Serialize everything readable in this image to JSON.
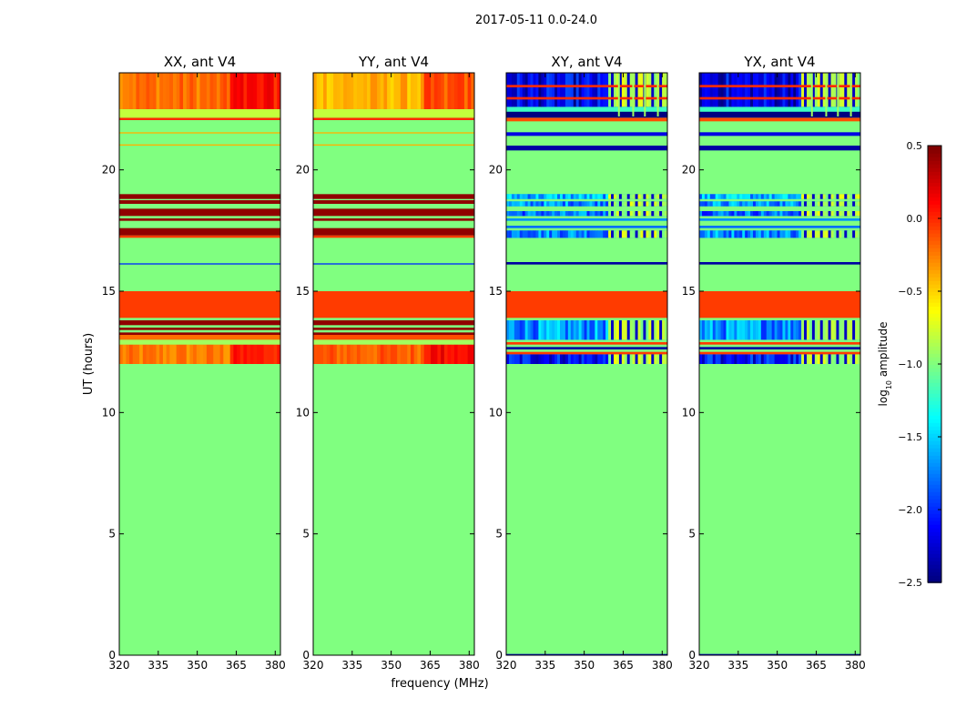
{
  "suptitle": "2017-05-11 0.0-24.0",
  "chart_data": {
    "type": "heatmap",
    "xlabel": "frequency (MHz)",
    "ylabel": "UT (hours)",
    "xlim": [
      320,
      382
    ],
    "ylim": [
      0,
      24
    ],
    "xticks": [
      320,
      335,
      350,
      365,
      380
    ],
    "yticks": [
      0,
      5,
      10,
      15,
      20
    ],
    "panels": [
      {
        "title": "XX, ant V4",
        "kind": "parallel",
        "base": -1.0,
        "bands": [
          {
            "y0": 12.0,
            "y1": 12.8,
            "value": -0.25,
            "texture": "xx"
          },
          {
            "y0": 12.8,
            "y1": 13.0,
            "value": -0.9
          },
          {
            "y0": 13.0,
            "y1": 13.2,
            "value": -0.2
          },
          {
            "y0": 13.2,
            "y1": 13.3,
            "value": 0.45
          },
          {
            "y0": 13.4,
            "y1": 13.5,
            "value": 0.45
          },
          {
            "y0": 13.6,
            "y1": 13.8,
            "value": 0.45
          },
          {
            "y0": 13.9,
            "y1": 15.0,
            "value": -0.05
          },
          {
            "y0": 16.1,
            "y1": 16.15,
            "value": -2.0
          },
          {
            "y0": 17.2,
            "y1": 17.3,
            "value": -0.05
          },
          {
            "y0": 17.3,
            "y1": 17.6,
            "value": 0.45
          },
          {
            "y0": 17.9,
            "y1": 18.0,
            "value": 0.45
          },
          {
            "y0": 18.1,
            "y1": 18.4,
            "value": 0.45
          },
          {
            "y0": 18.6,
            "y1": 18.75,
            "value": 0.45
          },
          {
            "y0": 18.8,
            "y1": 19.0,
            "value": 0.45
          },
          {
            "y0": 21.0,
            "y1": 21.05,
            "value": -0.4
          },
          {
            "y0": 21.5,
            "y1": 21.55,
            "value": -0.4
          },
          {
            "y0": 22.05,
            "y1": 22.15,
            "value": 0.0
          },
          {
            "y0": 22.15,
            "y1": 22.5,
            "value": -0.8
          },
          {
            "y0": 22.5,
            "y1": 24.0,
            "value": -0.2,
            "texture": "xx"
          }
        ]
      },
      {
        "title": "YY, ant V4",
        "kind": "parallel",
        "base": -1.0,
        "bands": [
          {
            "y0": 12.0,
            "y1": 12.8,
            "value": -0.15,
            "texture": "yy"
          },
          {
            "y0": 12.8,
            "y1": 13.0,
            "value": -0.9
          },
          {
            "y0": 13.0,
            "y1": 13.2,
            "value": -0.1
          },
          {
            "y0": 13.2,
            "y1": 13.3,
            "value": 0.45
          },
          {
            "y0": 13.4,
            "y1": 13.5,
            "value": 0.45
          },
          {
            "y0": 13.6,
            "y1": 13.8,
            "value": 0.45
          },
          {
            "y0": 13.9,
            "y1": 15.0,
            "value": -0.05
          },
          {
            "y0": 16.1,
            "y1": 16.15,
            "value": -2.0
          },
          {
            "y0": 17.2,
            "y1": 17.3,
            "value": -0.05
          },
          {
            "y0": 17.3,
            "y1": 17.6,
            "value": 0.45
          },
          {
            "y0": 17.9,
            "y1": 18.0,
            "value": 0.45
          },
          {
            "y0": 18.1,
            "y1": 18.4,
            "value": 0.45
          },
          {
            "y0": 18.6,
            "y1": 18.75,
            "value": 0.45
          },
          {
            "y0": 18.8,
            "y1": 19.0,
            "value": 0.45
          },
          {
            "y0": 21.0,
            "y1": 21.05,
            "value": -0.4
          },
          {
            "y0": 21.5,
            "y1": 21.55,
            "value": -0.4
          },
          {
            "y0": 22.05,
            "y1": 22.15,
            "value": 0.0
          },
          {
            "y0": 22.15,
            "y1": 22.5,
            "value": -0.8
          },
          {
            "y0": 22.5,
            "y1": 24.0,
            "value": -0.4,
            "texture": "yy"
          }
        ]
      },
      {
        "title": "XY, ant V4",
        "kind": "cross",
        "base": -1.0,
        "bands": [
          {
            "y0": 0.0,
            "y1": 0.05,
            "value": -2.3
          },
          {
            "y0": 12.0,
            "y1": 12.4,
            "value": -2.1,
            "texture": "cross"
          },
          {
            "y0": 12.4,
            "y1": 12.5,
            "value": -0.05
          },
          {
            "y0": 12.6,
            "y1": 12.7,
            "value": -2.4
          },
          {
            "y0": 12.8,
            "y1": 12.9,
            "value": -0.05
          },
          {
            "y0": 13.0,
            "y1": 13.8,
            "value": -1.7,
            "texture": "cross"
          },
          {
            "y0": 13.9,
            "y1": 15.0,
            "value": -0.05
          },
          {
            "y0": 16.1,
            "y1": 16.2,
            "value": -2.4
          },
          {
            "y0": 17.2,
            "y1": 17.5,
            "value": -1.7,
            "texture": "cross"
          },
          {
            "y0": 17.6,
            "y1": 17.7,
            "value": -1.8
          },
          {
            "y0": 17.9,
            "y1": 18.0,
            "value": -1.7
          },
          {
            "y0": 18.1,
            "y1": 18.3,
            "value": -1.8,
            "texture": "cross"
          },
          {
            "y0": 18.5,
            "y1": 18.7,
            "value": -1.7,
            "texture": "cross"
          },
          {
            "y0": 18.8,
            "y1": 19.0,
            "value": -1.6,
            "texture": "cross"
          },
          {
            "y0": 20.8,
            "y1": 21.0,
            "value": -2.4
          },
          {
            "y0": 21.4,
            "y1": 21.55,
            "value": -2.2
          },
          {
            "y0": 22.0,
            "y1": 22.15,
            "value": -0.1
          },
          {
            "y0": 22.15,
            "y1": 22.4,
            "value": -2.5
          },
          {
            "y0": 22.4,
            "y1": 22.6,
            "value": -1.2
          },
          {
            "y0": 22.6,
            "y1": 24.0,
            "value": -2.2,
            "texture": "cross"
          },
          {
            "y0": 22.9,
            "y1": 23.0,
            "value": 0.0
          },
          {
            "y0": 23.4,
            "y1": 23.5,
            "value": 0.0
          }
        ]
      },
      {
        "title": "YX, ant V4",
        "kind": "cross",
        "base": -1.0,
        "bands": [
          {
            "y0": 0.0,
            "y1": 0.05,
            "value": -2.3
          },
          {
            "y0": 12.0,
            "y1": 12.4,
            "value": -2.1,
            "texture": "cross"
          },
          {
            "y0": 12.4,
            "y1": 12.5,
            "value": -0.05
          },
          {
            "y0": 12.6,
            "y1": 12.7,
            "value": -2.4
          },
          {
            "y0": 12.8,
            "y1": 12.9,
            "value": -0.05
          },
          {
            "y0": 13.0,
            "y1": 13.8,
            "value": -1.7,
            "texture": "cross"
          },
          {
            "y0": 13.9,
            "y1": 15.0,
            "value": -0.05
          },
          {
            "y0": 16.1,
            "y1": 16.2,
            "value": -2.4
          },
          {
            "y0": 17.2,
            "y1": 17.5,
            "value": -1.7,
            "texture": "cross"
          },
          {
            "y0": 17.6,
            "y1": 17.7,
            "value": -1.8
          },
          {
            "y0": 17.9,
            "y1": 18.0,
            "value": -1.7
          },
          {
            "y0": 18.1,
            "y1": 18.3,
            "value": -1.8,
            "texture": "cross"
          },
          {
            "y0": 18.5,
            "y1": 18.7,
            "value": -1.7,
            "texture": "cross"
          },
          {
            "y0": 18.8,
            "y1": 19.0,
            "value": -1.6,
            "texture": "cross"
          },
          {
            "y0": 20.8,
            "y1": 21.0,
            "value": -2.4
          },
          {
            "y0": 21.4,
            "y1": 21.55,
            "value": -2.2
          },
          {
            "y0": 22.0,
            "y1": 22.15,
            "value": -0.1
          },
          {
            "y0": 22.15,
            "y1": 22.4,
            "value": -2.5
          },
          {
            "y0": 22.4,
            "y1": 22.6,
            "value": -1.2
          },
          {
            "y0": 22.6,
            "y1": 24.0,
            "value": -2.2,
            "texture": "cross"
          },
          {
            "y0": 22.9,
            "y1": 23.0,
            "value": 0.0
          },
          {
            "y0": 23.4,
            "y1": 23.5,
            "value": 0.0
          }
        ]
      }
    ],
    "colorbar": {
      "label": "log",
      "label_sub": "10",
      "label_rest": " amplitude",
      "colormap": "jet",
      "range": [
        -2.5,
        0.5
      ],
      "ticks": [
        -2.5,
        -2.0,
        -1.5,
        -1.0,
        -0.5,
        0.0,
        0.5
      ],
      "tick_labels": [
        "−2.5",
        "−2.0",
        "−1.5",
        "−1.0",
        "−0.5",
        "0.0",
        "0.5"
      ]
    }
  }
}
